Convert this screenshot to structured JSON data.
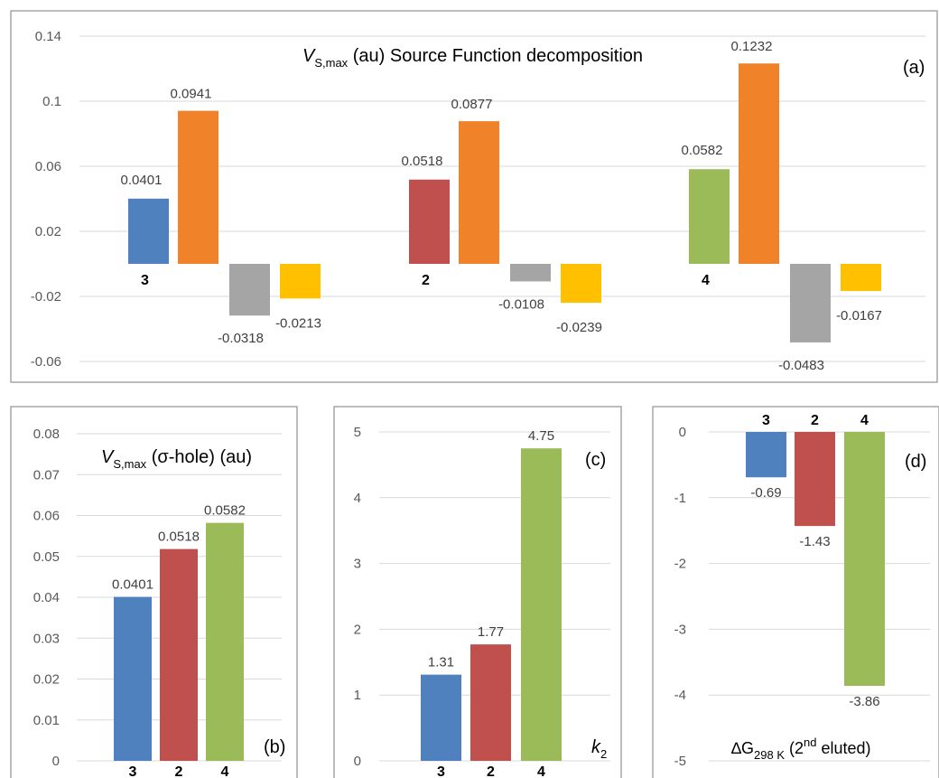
{
  "colors": {
    "blue": "#4e81bd",
    "red": "#c0504d",
    "green": "#9bbb59",
    "orange": "#f0822a",
    "gray": "#a5a5a5",
    "yellow": "#ffc000"
  },
  "chart_data": [
    {
      "id": "a",
      "type": "bar",
      "panel_label": "(a)",
      "title_main": "V",
      "title_sub": "S,max",
      "title_rest": " (au) Source Function decomposition",
      "categories": [
        "3",
        "2",
        "4"
      ],
      "values": [
        [
          0.0401,
          0.0941,
          -0.0318,
          -0.0213
        ],
        [
          0.0518,
          0.0877,
          -0.0108,
          -0.0239
        ],
        [
          0.0582,
          0.1232,
          -0.0483,
          -0.0167
        ]
      ],
      "value_labels": [
        [
          "0.0401",
          "0.0941",
          "-0.0318",
          "-0.0213"
        ],
        [
          "0.0518",
          "0.0877",
          "-0.0108",
          "-0.0239"
        ],
        [
          "0.0582",
          "0.1232",
          "-0.0483",
          "-0.0167"
        ]
      ],
      "yticks": [
        "0.14",
        "0.1",
        "0.06",
        "0.02",
        "-0.02",
        "-0.06"
      ],
      "ytick_values": [
        0.14,
        0.1,
        0.06,
        0.02,
        -0.02,
        -0.06
      ],
      "ylim": [
        -0.06,
        0.14
      ]
    },
    {
      "id": "b",
      "type": "bar",
      "panel_label": "(b)",
      "title_main": "V",
      "title_sub": "S,max",
      "title_rest": " (σ-hole) (au)",
      "categories": [
        "3",
        "2",
        "4"
      ],
      "values": [
        0.0401,
        0.0518,
        0.0582
      ],
      "value_labels": [
        "0.0401",
        "0.0518",
        "0.0582"
      ],
      "yticks": [
        "0.08",
        "0.07",
        "0.06",
        "0.05",
        "0.04",
        "0.03",
        "0.02",
        "0.01",
        "0"
      ],
      "ytick_values": [
        0.08,
        0.07,
        0.06,
        0.05,
        0.04,
        0.03,
        0.02,
        0.01,
        0
      ],
      "ylim": [
        0,
        0.08
      ]
    },
    {
      "id": "c",
      "type": "bar",
      "panel_label": "(c)",
      "axis_note_main": "k",
      "axis_note_sub": "2",
      "categories": [
        "3",
        "2",
        "4"
      ],
      "values": [
        1.31,
        1.77,
        4.75
      ],
      "value_labels": [
        "1.31",
        "1.77",
        "4.75"
      ],
      "yticks": [
        "5",
        "4",
        "3",
        "2",
        "1",
        "0"
      ],
      "ytick_values": [
        5,
        4,
        3,
        2,
        1,
        0
      ],
      "ylim": [
        0,
        5
      ]
    },
    {
      "id": "d",
      "type": "bar",
      "panel_label": "(d)",
      "axis_note_main": "∆G",
      "axis_note_sub": "298 K",
      "axis_note_rest": " (2",
      "axis_note_sup": "nd",
      "axis_note_end": " eluted)",
      "categories": [
        "3",
        "2",
        "4"
      ],
      "values": [
        -0.69,
        -1.43,
        -3.86
      ],
      "value_labels": [
        "-0.69",
        "-1.43",
        "-3.86"
      ],
      "yticks": [
        "0",
        "-1",
        "-2",
        "-3",
        "-4",
        "-5"
      ],
      "ytick_values": [
        0,
        -1,
        -2,
        -3,
        -4,
        -5
      ],
      "ylim": [
        -5,
        0
      ]
    }
  ]
}
